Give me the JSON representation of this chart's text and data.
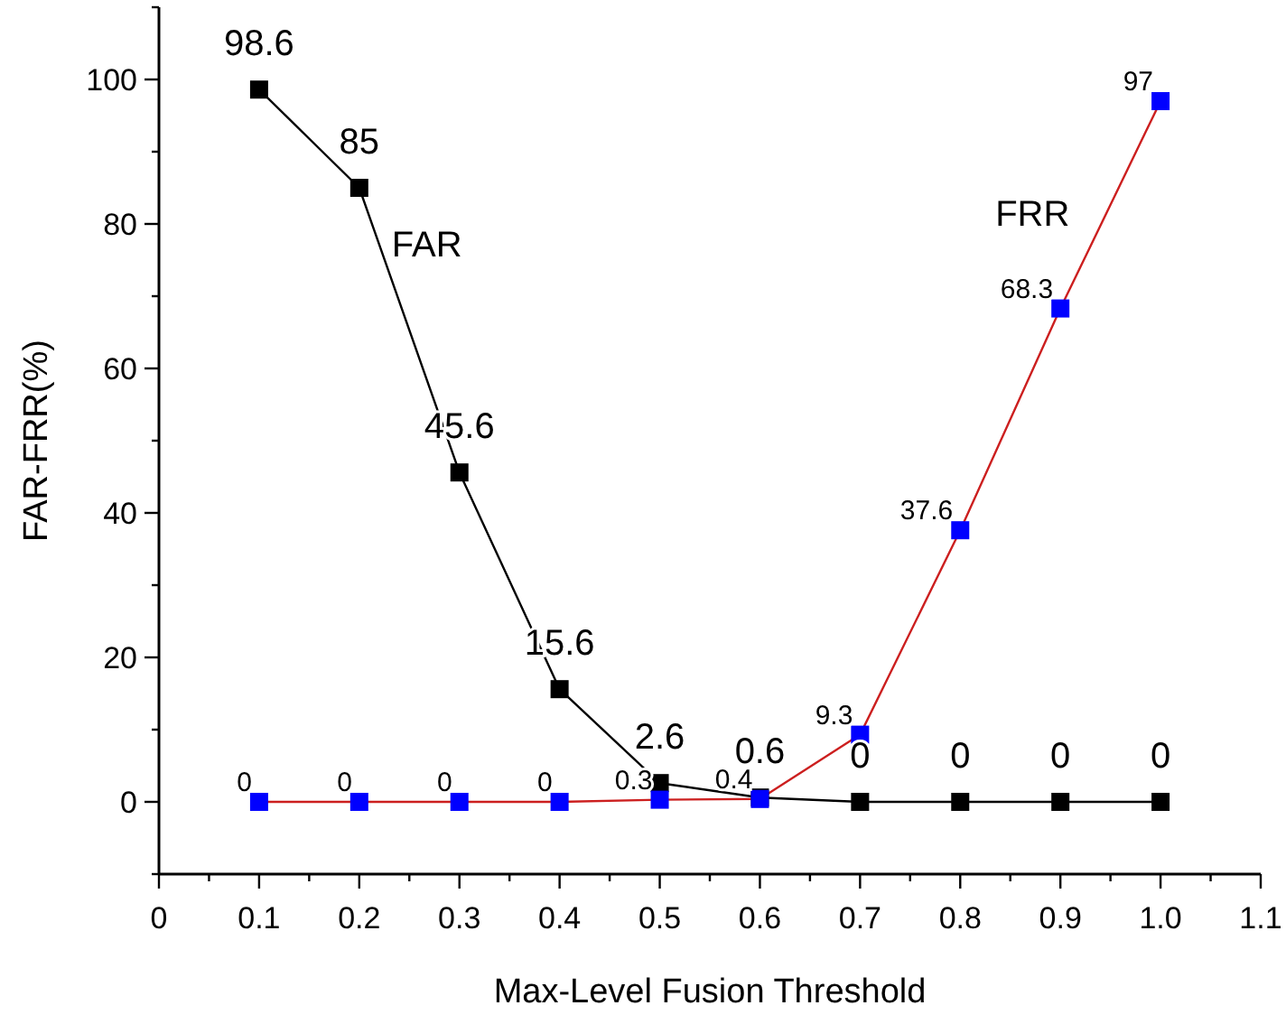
{
  "chart_data": {
    "type": "line",
    "xlabel": "Max-Level Fusion Threshold",
    "ylabel": "FAR-FRR(%)",
    "x": [
      0.1,
      0.2,
      0.3,
      0.4,
      0.5,
      0.6,
      0.7,
      0.8,
      0.9,
      1.0
    ],
    "xlim": [
      0,
      1.1
    ],
    "xticks": [
      0,
      {
        "value": 0.05,
        "label": null
      },
      {
        "value": 0.1,
        "label": "0.1"
      },
      {
        "value": 0.15,
        "label": null
      },
      {
        "value": 0.2,
        "label": "0.2"
      },
      {
        "value": 0.25,
        "label": null
      },
      {
        "value": 0.3,
        "label": "0.3"
      },
      {
        "value": 0.35,
        "label": null
      },
      {
        "value": 0.4,
        "label": "0.4"
      },
      {
        "value": 0.45,
        "label": null
      },
      {
        "value": 0.5,
        "label": "0.5"
      },
      {
        "value": 0.55,
        "label": null
      },
      {
        "value": 0.6,
        "label": "0.6"
      },
      {
        "value": 0.65,
        "label": null
      },
      {
        "value": 0.7,
        "label": "0.7"
      },
      {
        "value": 0.75,
        "label": null
      },
      {
        "value": 0.8,
        "label": "0.8"
      },
      {
        "value": 0.85,
        "label": null
      },
      {
        "value": 0.9,
        "label": "0.9"
      },
      {
        "value": 0.95,
        "label": null
      },
      {
        "value": 1.0,
        "label": "1.0"
      },
      {
        "value": 1.05,
        "label": null
      },
      {
        "value": 1.1,
        "label": "1.1"
      }
    ],
    "ylim": [
      -10,
      110
    ],
    "yticks": [
      {
        "value": -10,
        "label": null
      },
      0,
      {
        "value": 10,
        "label": null
      },
      20,
      {
        "value": 30,
        "label": null
      },
      40,
      {
        "value": 50,
        "label": null
      },
      60,
      {
        "value": 70,
        "label": null
      },
      80,
      {
        "value": 90,
        "label": null
      },
      100,
      {
        "value": 110,
        "label": null
      }
    ],
    "marker": "square",
    "line_style": "solid",
    "series": [
      {
        "name": "FAR",
        "color": "#000000",
        "values": [
          98.6,
          85,
          45.6,
          15.6,
          2.6,
          0.6,
          0,
          0,
          0,
          0
        ],
        "value_labels": [
          "98.6",
          "85",
          "45.6",
          "15.6",
          "2.6",
          "0.6",
          "0",
          "0",
          "0",
          "0"
        ]
      },
      {
        "name": "FRR",
        "color": "#cc1f1f",
        "colors": [
          "#0000ff",
          "#0000ff",
          "#0000ff",
          "#0000ff",
          "#0000ff",
          "#0000ff",
          "#0000ff",
          "#0000ff",
          "#0000ff",
          "#0000ff"
        ],
        "values": [
          0,
          0,
          0,
          0,
          0.3,
          0.4,
          9.3,
          37.6,
          68.3,
          97
        ],
        "value_labels": [
          "0",
          "0",
          "0",
          "0",
          "0.3",
          "0.4",
          "9.3",
          "37.6",
          "68.3",
          "97"
        ]
      }
    ]
  }
}
